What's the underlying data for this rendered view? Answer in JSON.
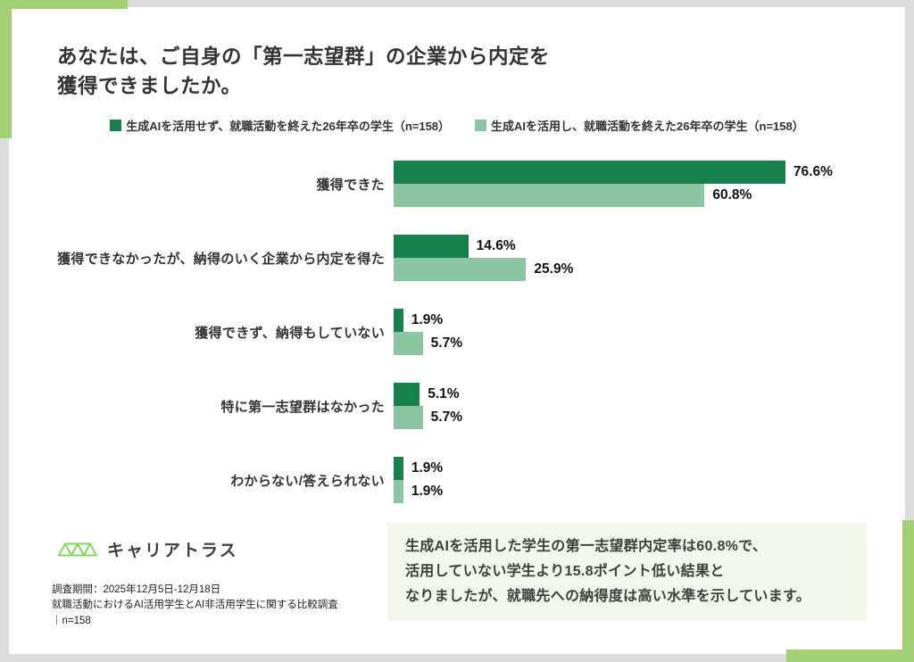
{
  "title": {
    "line1": "あなたは、ご自身の「第一志望群」の企業から内定を",
    "line2": "獲得できましたか。"
  },
  "legend": [
    {
      "label": "生成AIを活用せず、就職活動を終えた26年卒の学生（n=158）",
      "color": "#16814A"
    },
    {
      "label": "生成AIを活用し、就職活動を終えた26年卒の学生（n=158）",
      "color": "#8CC5A1"
    }
  ],
  "chart_data": {
    "type": "bar",
    "orientation": "horizontal",
    "categories": [
      "獲得できた",
      "獲得できなかったが、納得のいく企業から内定を得た",
      "獲得できず、納得もしていない",
      "特に第一志望群はなかった",
      "わからない/答えられない"
    ],
    "series": [
      {
        "name": "生成AIを活用せず、就職活動を終えた26年卒の学生（n=158）",
        "color": "#16814A",
        "values": [
          76.6,
          14.6,
          1.9,
          5.1,
          1.9
        ]
      },
      {
        "name": "生成AIを活用し、就職活動を終えた26年卒の学生（n=158）",
        "color": "#8CC5A1",
        "values": [
          60.8,
          25.9,
          5.7,
          5.7,
          1.9
        ]
      }
    ],
    "value_suffix": "%",
    "xlim": [
      0,
      100
    ],
    "grid": false,
    "legend_position": "top"
  },
  "logo": {
    "text": "キャリアトラス",
    "icon_color": "#7EDB5C"
  },
  "footer": {
    "line1": "調査期間：2025年12月5日-12月18日",
    "line2": "就職活動におけるAI活用学生とAI非活用学生に関する比較調査",
    "line3": "｜n=158"
  },
  "insight": {
    "line1": "生成AIを活用した学生の第一志望群内定率は60.8%で、",
    "line2": "活用していない学生より15.8ポイント低い結果と",
    "line3": "なりましたが、就職先への納得度は高い水準を示しています。"
  },
  "colors": {
    "page_background": "#DCDCDC",
    "card_background": "#FFFFFF",
    "corner_accent": "#A2D175",
    "insight_background": "#F2F7EB",
    "series_dark": "#16814A",
    "series_light": "#8CC5A1"
  }
}
